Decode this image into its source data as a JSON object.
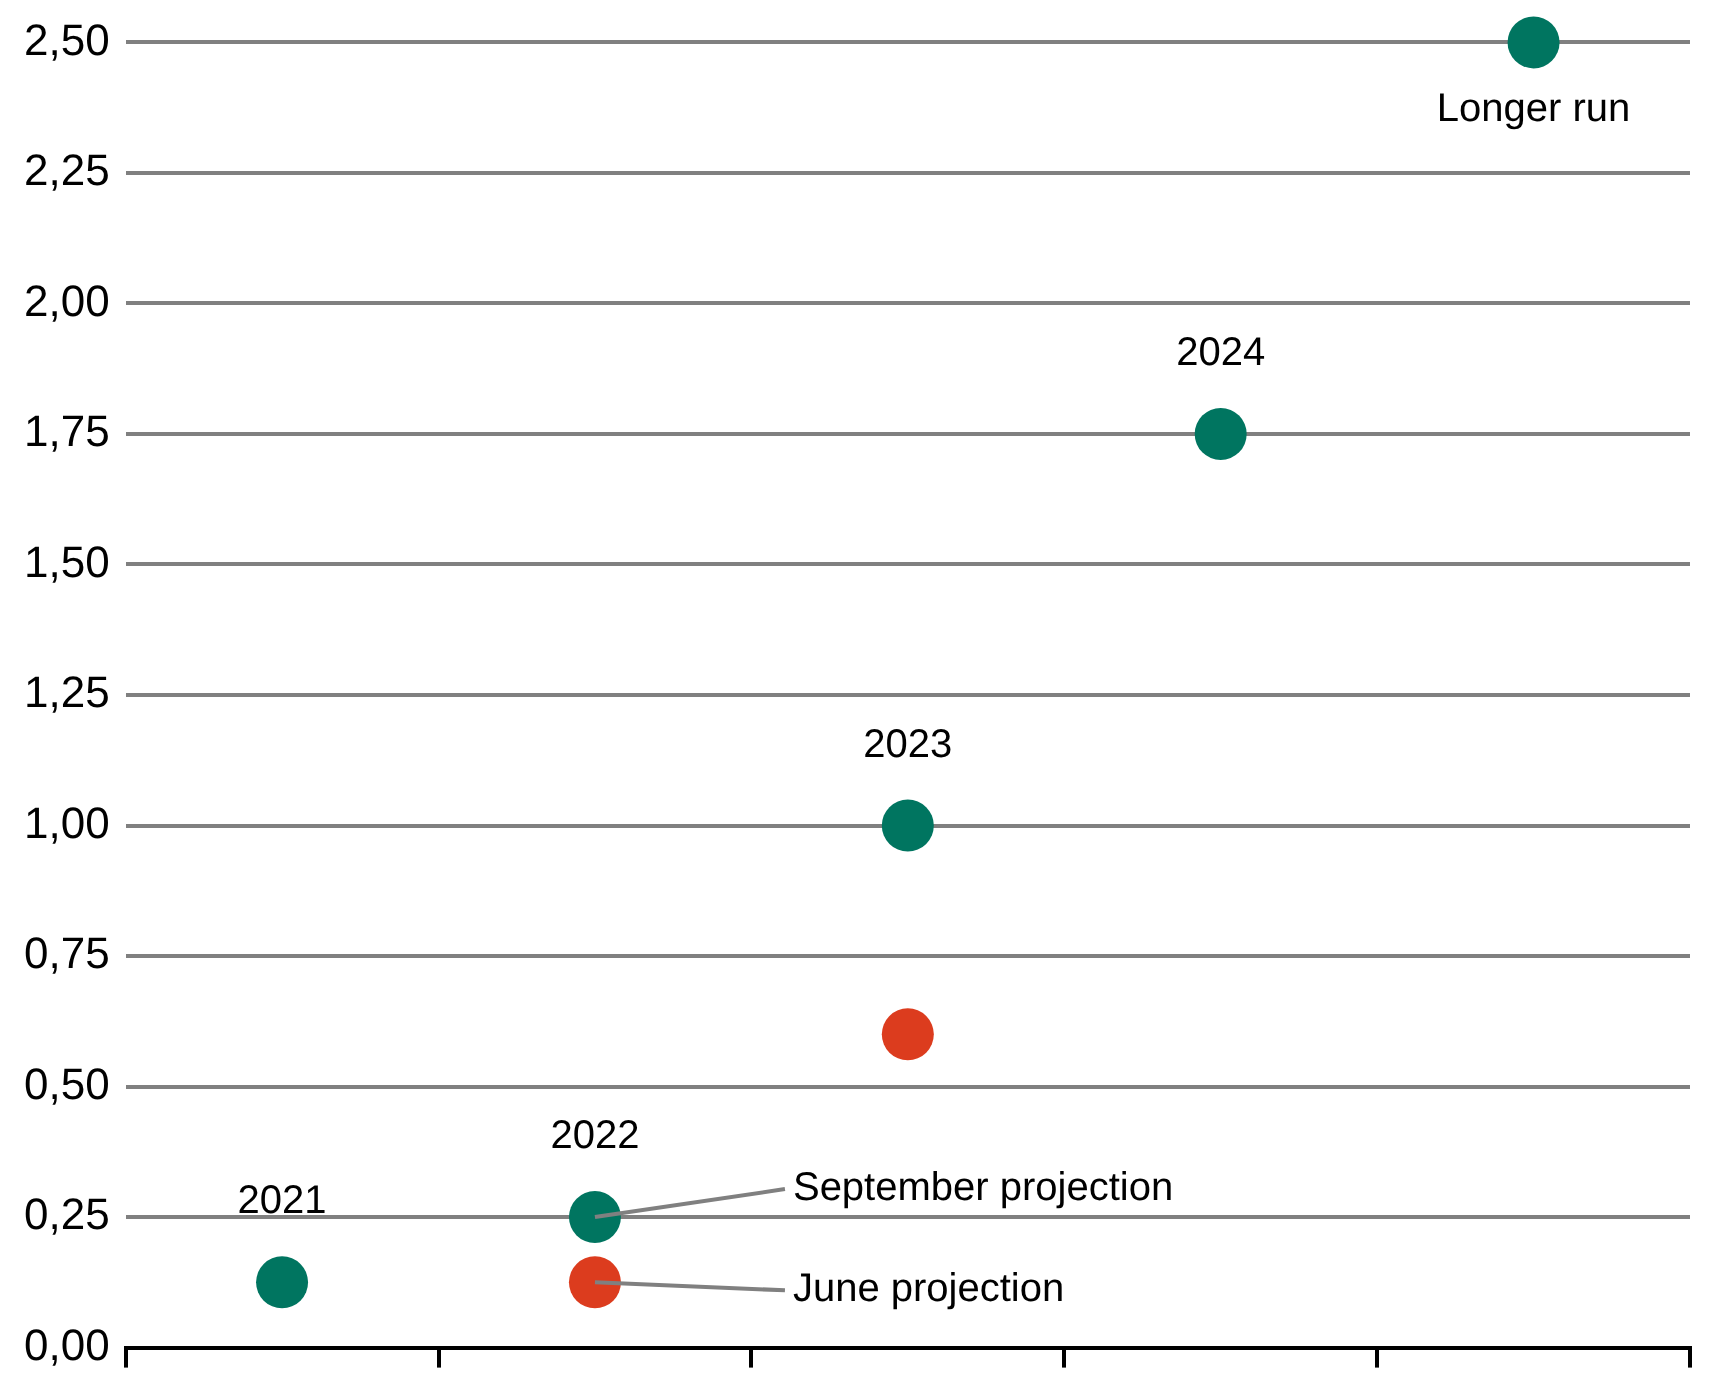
{
  "chart_data": {
    "type": "scatter",
    "categories": [
      "2021",
      "2022",
      "2023",
      "2024",
      "Longer run"
    ],
    "series": [
      {
        "name": "September projection",
        "color": "#007560",
        "values": [
          0.125,
          0.25,
          1.0,
          1.75,
          2.5
        ]
      },
      {
        "name": "June projection",
        "color": "#dc3c1e",
        "values": [
          null,
          0.125,
          0.6,
          null,
          null
        ]
      }
    ],
    "ylim": [
      0,
      2.5
    ],
    "yticks": [
      {
        "value": 0,
        "label": "0,00"
      },
      {
        "value": 0.25,
        "label": "0,25"
      },
      {
        "value": 0.5,
        "label": "0,50"
      },
      {
        "value": 0.75,
        "label": "0,75"
      },
      {
        "value": 1,
        "label": "1,00"
      },
      {
        "value": 1.25,
        "label": "1,25"
      },
      {
        "value": 1.5,
        "label": "1,50"
      },
      {
        "value": 1.75,
        "label": "1,75"
      },
      {
        "value": 2,
        "label": "2,00"
      },
      {
        "value": 2.25,
        "label": "2,25"
      },
      {
        "value": 2.5,
        "label": "2,50"
      }
    ],
    "grid": "y",
    "legend": false,
    "marker": "circle",
    "tick_labels": "y"
  }
}
